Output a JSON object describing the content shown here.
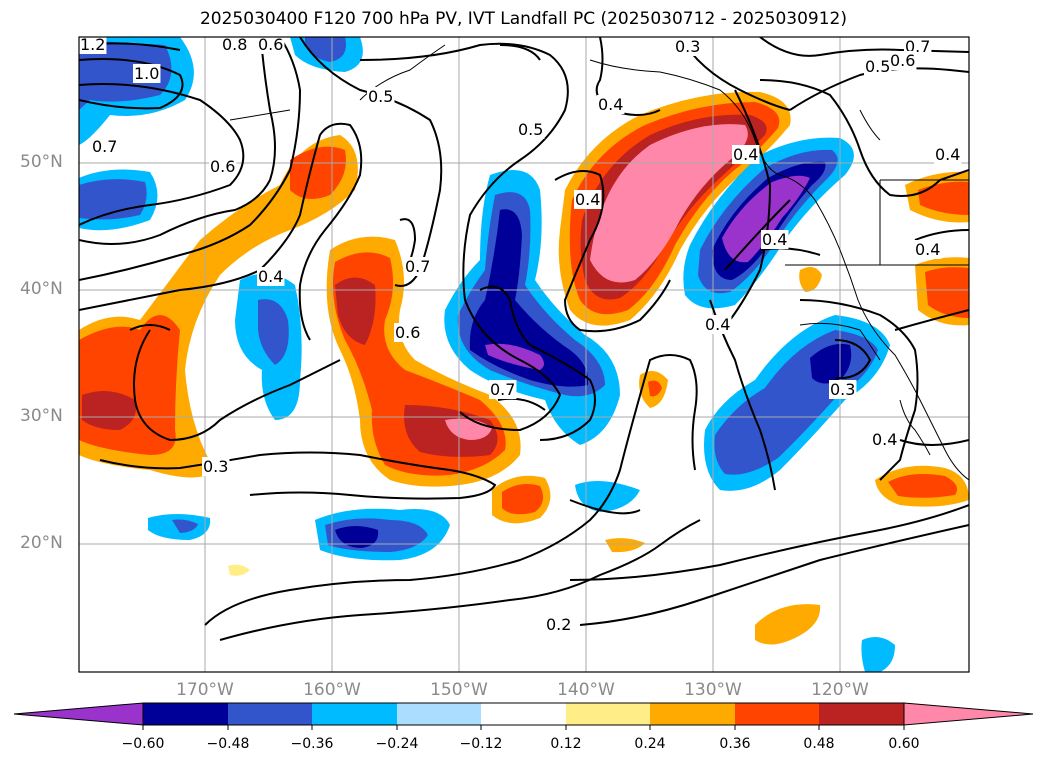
{
  "title": "2025030400 F120 700 hPa PV, IVT Landfall PC (2025030712 - 2025030912)",
  "map": {
    "lat_labels": [
      "50°N",
      "40°N",
      "30°N",
      "20°N"
    ],
    "lon_labels": [
      "170°W",
      "160°W",
      "150°W",
      "140°W",
      "130°W",
      "120°W"
    ],
    "contour_labels": [
      "1.2",
      "1.0",
      "0.8",
      "0.6",
      "0.3",
      "0.5",
      "0.7",
      "0.6",
      "0.5",
      "0.4",
      "0.7",
      "0.7",
      "0.4",
      "0.4",
      "0.5",
      "0.4",
      "0.7",
      "0.6",
      "0.4",
      "0.6",
      "0.4",
      "0.4",
      "0.4",
      "0.3",
      "0.3",
      "0.4",
      "0.2"
    ]
  },
  "colorbar": {
    "ticks": [
      "−0.60",
      "−0.48",
      "−0.36",
      "−0.24",
      "−0.12",
      "0.12",
      "0.24",
      "0.36",
      "0.48",
      "0.60"
    ],
    "colors": [
      "#9933cc",
      "#000099",
      "#3355cc",
      "#00bbff",
      "#aaddff",
      "#ffffff",
      "#ffee88",
      "#ffaa00",
      "#ff4400",
      "#bb2222",
      "#ff88aa"
    ]
  },
  "colors": {
    "strong_neg": "#9933cc",
    "neg2": "#000099",
    "neg3": "#3355cc",
    "neg4": "#00bbff",
    "neg5": "#aaddff",
    "pos1": "#ffee88",
    "pos2": "#ffaa00",
    "pos3": "#ff4400",
    "pos4": "#bb2222",
    "pos5": "#ff88aa"
  }
}
